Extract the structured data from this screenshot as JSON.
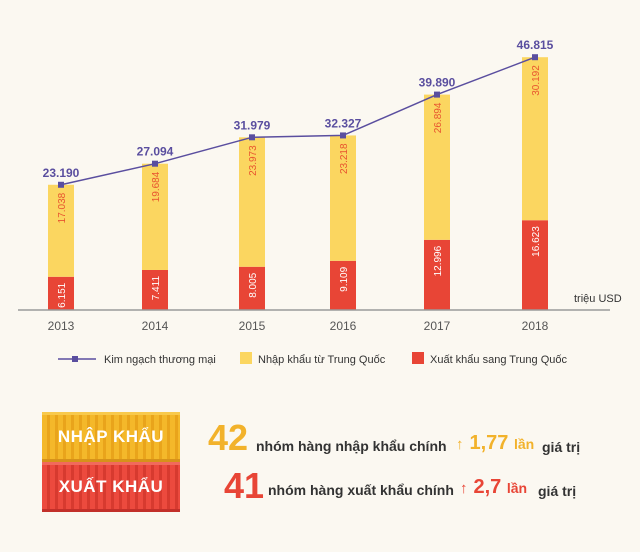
{
  "chart_data": {
    "type": "bar",
    "categories": [
      "2013",
      "2014",
      "2015",
      "2016",
      "2017",
      "2018"
    ],
    "series": [
      {
        "name": "Xuất khẩu sang Trung Quốc",
        "values": [
          6.151,
          7.411,
          8.005,
          9.109,
          12.996,
          16.623
        ],
        "labels": [
          "6.151",
          "7.411",
          "8.005",
          "9.109",
          "12.996",
          "16.623"
        ],
        "color": "#e84536"
      },
      {
        "name": "Nhập khẩu từ Trung Quốc",
        "values": [
          17.038,
          19.684,
          23.973,
          23.218,
          26.894,
          30.192
        ],
        "labels": [
          "17.038",
          "19.684",
          "23.973",
          "23.218",
          "26.894",
          "30.192"
        ],
        "color": "#fbd660"
      }
    ],
    "line": {
      "name": "Kim ngạch thương mại",
      "values": [
        23.19,
        27.094,
        31.979,
        32.327,
        39.89,
        46.815
      ],
      "labels": [
        "23.190",
        "27.094",
        "31.979",
        "32.327",
        "39.890",
        "46.815"
      ],
      "color": "#5a4e9f"
    },
    "unit_label": "triệu USD",
    "ylim": [
      0,
      50
    ]
  },
  "legend": {
    "line": "Kim ngạch thương mại",
    "import": "Nhập khẩu từ Trung Quốc",
    "export": "Xuất khẩu sang Trung Quốc"
  },
  "summary": {
    "import": {
      "label": "NHẬP KHẨU",
      "count": "42",
      "text": "nhóm hàng nhập khẩu chính",
      "ratio": "1,77",
      "unit": "lần",
      "tail": "giá trị",
      "color": "#f2b22b"
    },
    "export": {
      "label": "XUẤT KHẨU",
      "count": "41",
      "text": "nhóm hàng xuất khẩu chính",
      "ratio": "2,7",
      "unit": "lần",
      "tail": "giá trị",
      "color": "#e84536"
    }
  }
}
